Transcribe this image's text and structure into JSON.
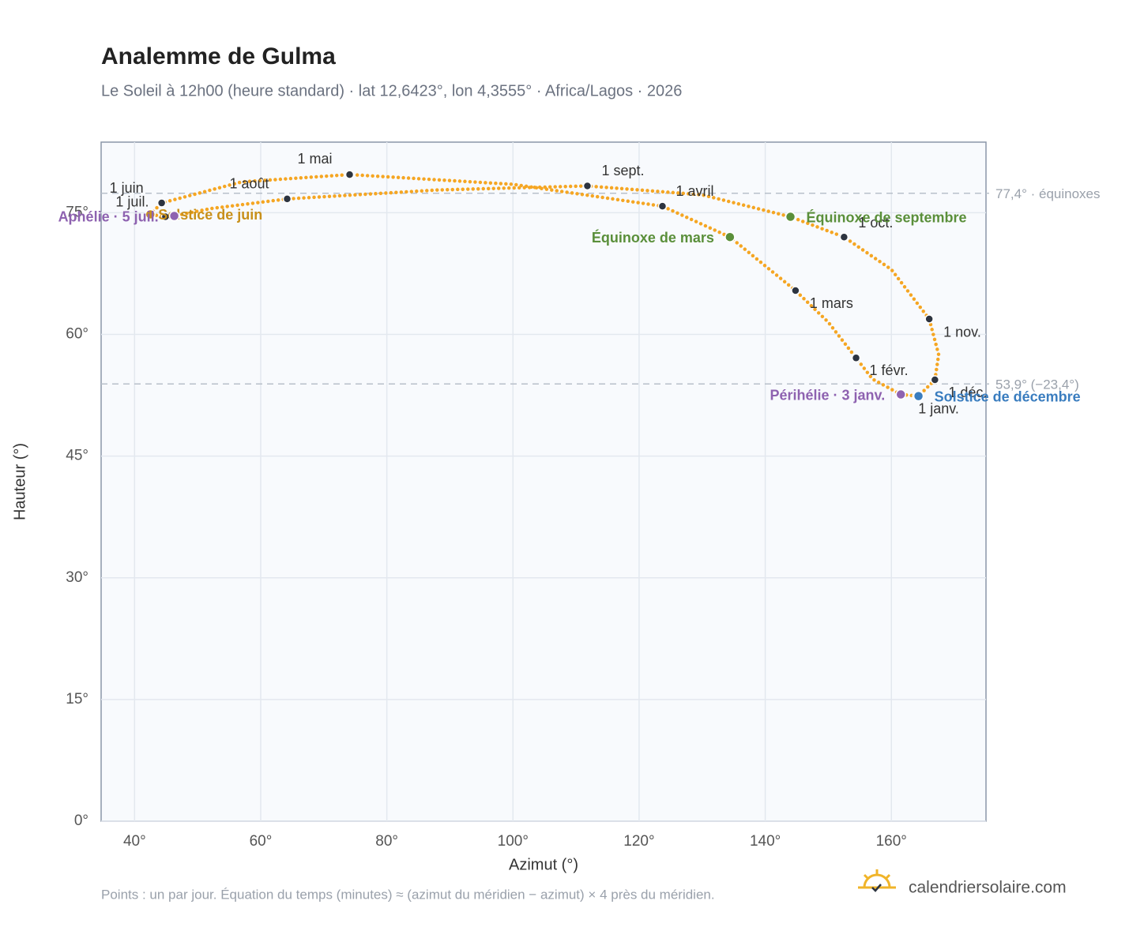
{
  "chart_data": {
    "type": "analemma",
    "title": "Analemme de Gulma",
    "subtitle": "Le Soleil à 12h00 (heure standard) · lat 12,6423°, lon 4,3555° · Africa/Lagos · 2026",
    "x_label": "Azimut (°)",
    "y_label": "Hauteur (°)",
    "xlim": [
      34.7,
      175
    ],
    "ylim": [
      0,
      83.7
    ],
    "xticks": [
      {
        "value": 40,
        "label": "40°"
      },
      {
        "value": 60,
        "label": "60°"
      },
      {
        "value": 80,
        "label": "80°"
      },
      {
        "value": 100,
        "label": "100°"
      },
      {
        "value": 120,
        "label": "120°"
      },
      {
        "value": 140,
        "label": "140°"
      },
      {
        "value": 160,
        "label": "160°"
      }
    ],
    "yticks": [
      {
        "value": 0,
        "label": "0°"
      },
      {
        "value": 15,
        "label": "15°"
      },
      {
        "value": 30,
        "label": "30°"
      },
      {
        "value": 45,
        "label": "45°"
      },
      {
        "value": 60,
        "label": "60°"
      },
      {
        "value": 75,
        "label": "75°"
      }
    ],
    "grid": true,
    "path": {
      "color": "#f5a623",
      "x": [
        164.0,
        161.5,
        157,
        154.4,
        150,
        144.8,
        134.4,
        123.7,
        100,
        74.1,
        57,
        44.3,
        42.5,
        44.9,
        46.3,
        52,
        64.2,
        88,
        111.8,
        130,
        144.0,
        152.5,
        160,
        166.0,
        167.5,
        166.9,
        164.3
      ],
      "y": [
        52.4,
        52.6,
        54.5,
        57.1,
        61.5,
        65.4,
        72.0,
        75.8,
        78.5,
        79.7,
        78.8,
        76.2,
        74.8,
        74.5,
        74.6,
        75.5,
        76.7,
        77.8,
        78.3,
        77.2,
        74.5,
        72.0,
        68,
        61.9,
        57.5,
        54.4,
        52.4
      ]
    },
    "months": {
      "color": "#2d3440",
      "labels": [
        "1 janv.",
        "1 févr.",
        "1 mars",
        "1 avril",
        "1 mai",
        "1 juin",
        "1 juil.",
        "1 août",
        "1 sept.",
        "1 oct.",
        "1 nov.",
        "1 déc."
      ],
      "x": [
        164.0,
        154.4,
        144.8,
        123.7,
        74.1,
        44.3,
        44.9,
        64.2,
        111.8,
        152.5,
        166.0,
        166.9
      ],
      "y": [
        52.4,
        57.1,
        65.4,
        75.8,
        79.7,
        76.2,
        74.5,
        76.7,
        78.3,
        72.0,
        61.9,
        54.4
      ]
    },
    "events": [
      {
        "label": "Équinoxe de mars",
        "x": 134.4,
        "y": 72.0,
        "color": "#5a8f3a"
      },
      {
        "label": "Équinoxe de septembre",
        "x": 144.0,
        "y": 74.5,
        "color": "#5a8f3a"
      },
      {
        "label": "Solstice de juin",
        "x": 42.5,
        "y": 74.8,
        "color": "#c8901a"
      },
      {
        "label": "Aphélie · 5 juil.",
        "x": 46.3,
        "y": 74.6,
        "color": "#8e62b0"
      },
      {
        "label": "Solstice de décembre",
        "x": 164.3,
        "y": 52.4,
        "color": "#3a7dbf"
      },
      {
        "label": "Périhélie · 3 janv.",
        "x": 161.5,
        "y": 52.6,
        "color": "#8e62b0"
      }
    ],
    "hlines": [
      {
        "value": 77.4,
        "label": "77,4° · équinoxes"
      },
      {
        "value": 53.9,
        "label": "53,9° (−23,4°)"
      }
    ],
    "note": "Points : un par jour. Équation du temps (minutes) ≈ (azimut du méridien − azimut) × 4 près du méridien.",
    "brand": "calendriersolaire.com"
  }
}
